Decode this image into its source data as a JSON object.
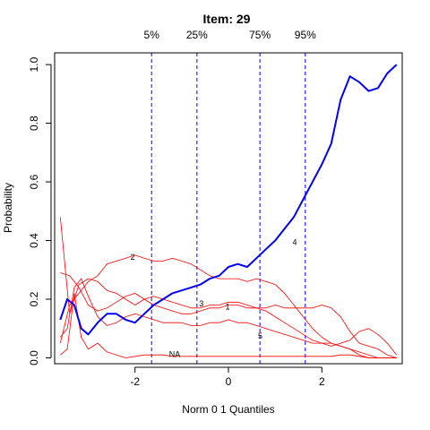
{
  "chart_data": {
    "type": "line",
    "title": "Item:  29",
    "xlabel": "Norm 0 1 Quantiles",
    "ylabel": "Probability",
    "xlim": [
      -3.72,
      3.72
    ],
    "ylim": [
      -0.02,
      1.04
    ],
    "x_ticks": [
      -2,
      0,
      2
    ],
    "x_tick_labels": [
      "-2",
      "0",
      "2"
    ],
    "y_ticks": [
      0.0,
      0.2,
      0.4,
      0.6,
      0.8,
      1.0
    ],
    "y_tick_labels": [
      "0.0",
      "0.2",
      "0.4",
      "0.6",
      "0.8",
      "1.0"
    ],
    "grid": false,
    "quantile_lines": [
      {
        "label": "5%",
        "x": -1.645,
        "color": "#0000ff"
      },
      {
        "label": "25%",
        "x": -0.674,
        "color": "#0000ff"
      },
      {
        "label": "75%",
        "x": 0.674,
        "color": "#0000ff"
      },
      {
        "label": "95%",
        "x": 1.645,
        "color": "#0000ff"
      }
    ],
    "series": [
      {
        "name": "4",
        "color": "#0000ff",
        "highlight": true,
        "label_at": [
          1.42,
          0.385
        ],
        "x": [
          -3.6,
          -3.45,
          -3.3,
          -3.15,
          -3.0,
          -2.8,
          -2.6,
          -2.4,
          -2.2,
          -2.0,
          -1.8,
          -1.6,
          -1.4,
          -1.2,
          -1.0,
          -0.8,
          -0.6,
          -0.4,
          -0.2,
          0.0,
          0.2,
          0.4,
          0.6,
          0.8,
          1.0,
          1.2,
          1.4,
          1.6,
          1.8,
          2.0,
          2.2,
          2.4,
          2.6,
          2.8,
          3.0,
          3.2,
          3.4,
          3.6
        ],
        "y": [
          0.13,
          0.2,
          0.18,
          0.1,
          0.08,
          0.12,
          0.15,
          0.15,
          0.13,
          0.12,
          0.15,
          0.18,
          0.2,
          0.22,
          0.23,
          0.24,
          0.25,
          0.27,
          0.28,
          0.31,
          0.32,
          0.31,
          0.34,
          0.37,
          0.4,
          0.44,
          0.48,
          0.54,
          0.6,
          0.66,
          0.73,
          0.88,
          0.96,
          0.94,
          0.91,
          0.92,
          0.97,
          1.0
        ]
      },
      {
        "name": "2",
        "color": "#ff0000",
        "label_at": [
          -2.05,
          0.335
        ],
        "x": [
          -3.6,
          -3.4,
          -3.2,
          -3.0,
          -2.8,
          -2.6,
          -2.4,
          -2.2,
          -2.0,
          -1.8,
          -1.6,
          -1.4,
          -1.2,
          -1.0,
          -0.8,
          -0.6,
          -0.4,
          -0.2,
          0.0,
          0.2,
          0.4,
          0.6,
          0.8,
          1.0,
          1.2,
          1.4,
          1.6,
          1.8,
          2.0,
          2.2,
          2.4,
          2.6,
          2.8,
          3.0,
          3.2,
          3.4,
          3.6
        ],
        "y": [
          0.05,
          0.18,
          0.22,
          0.26,
          0.28,
          0.32,
          0.33,
          0.34,
          0.35,
          0.34,
          0.33,
          0.33,
          0.34,
          0.33,
          0.32,
          0.3,
          0.28,
          0.27,
          0.27,
          0.27,
          0.26,
          0.27,
          0.26,
          0.25,
          0.22,
          0.18,
          0.14,
          0.1,
          0.07,
          0.05,
          0.04,
          0.03,
          0.02,
          0.01,
          0.0,
          0.0,
          0.0
        ]
      },
      {
        "name": "3",
        "color": "#ff0000",
        "label_at": [
          -0.58,
          0.175
        ],
        "x": [
          -3.6,
          -3.4,
          -3.2,
          -3.0,
          -2.8,
          -2.6,
          -2.4,
          -2.2,
          -2.0,
          -1.8,
          -1.6,
          -1.4,
          -1.2,
          -1.0,
          -0.8,
          -0.6,
          -0.4,
          -0.2,
          0.0,
          0.2,
          0.4,
          0.6,
          0.8,
          1.0,
          1.2,
          1.4,
          1.6,
          1.8,
          2.0,
          2.2,
          2.4,
          2.6,
          2.8,
          3.0,
          3.2,
          3.4,
          3.6
        ],
        "y": [
          0.29,
          0.28,
          0.24,
          0.18,
          0.16,
          0.17,
          0.19,
          0.21,
          0.22,
          0.2,
          0.18,
          0.17,
          0.16,
          0.15,
          0.15,
          0.16,
          0.17,
          0.17,
          0.18,
          0.18,
          0.17,
          0.17,
          0.17,
          0.18,
          0.17,
          0.17,
          0.17,
          0.17,
          0.18,
          0.17,
          0.14,
          0.09,
          0.05,
          0.04,
          0.03,
          0.01,
          0.0
        ]
      },
      {
        "name": "1",
        "color": "#ff0000",
        "label_at": [
          -0.02,
          0.165
        ],
        "x": [
          -3.6,
          -3.4,
          -3.2,
          -3.0,
          -2.8,
          -2.6,
          -2.4,
          -2.2,
          -2.0,
          -1.8,
          -1.6,
          -1.4,
          -1.2,
          -1.0,
          -0.8,
          -0.6,
          -0.4,
          -0.2,
          0.0,
          0.2,
          0.4,
          0.6,
          0.8,
          1.0,
          1.2,
          1.4,
          1.6,
          1.8,
          2.0,
          2.2,
          2.4,
          2.6,
          2.8,
          3.0,
          3.2,
          3.4,
          3.6
        ],
        "y": [
          0.48,
          0.15,
          0.25,
          0.27,
          0.26,
          0.23,
          0.22,
          0.2,
          0.18,
          0.2,
          0.21,
          0.2,
          0.19,
          0.18,
          0.17,
          0.17,
          0.18,
          0.18,
          0.19,
          0.19,
          0.18,
          0.17,
          0.16,
          0.14,
          0.12,
          0.1,
          0.08,
          0.06,
          0.05,
          0.04,
          0.05,
          0.06,
          0.09,
          0.1,
          0.08,
          0.05,
          0.01
        ]
      },
      {
        "name": "5",
        "color": "#ff0000",
        "label_at": [
          0.68,
          0.065
        ],
        "x": [
          -3.6,
          -3.45,
          -3.3,
          -3.15,
          -3.0,
          -2.8,
          -2.6,
          -2.4,
          -2.2,
          -2.0,
          -1.8,
          -1.6,
          -1.4,
          -1.2,
          -1.0,
          -0.8,
          -0.6,
          -0.4,
          -0.2,
          0.0,
          0.2,
          0.4,
          0.6,
          0.8,
          1.0,
          1.2,
          1.4,
          1.6,
          1.8,
          2.0,
          2.2,
          2.4,
          2.6,
          2.8,
          3.0,
          3.2,
          3.4,
          3.6
        ],
        "y": [
          0.07,
          0.1,
          0.24,
          0.27,
          0.21,
          0.14,
          0.11,
          0.12,
          0.14,
          0.15,
          0.14,
          0.13,
          0.12,
          0.12,
          0.12,
          0.11,
          0.11,
          0.12,
          0.12,
          0.13,
          0.12,
          0.12,
          0.11,
          0.1,
          0.09,
          0.08,
          0.07,
          0.06,
          0.05,
          0.05,
          0.05,
          0.04,
          0.03,
          0.01,
          0.0,
          0.0,
          0.0,
          0.0
        ]
      },
      {
        "name": "NA",
        "color": "#ff0000",
        "label_at": [
          -1.15,
          0.003
        ],
        "x": [
          -3.6,
          -3.45,
          -3.3,
          -3.15,
          -3.0,
          -2.8,
          -2.6,
          -2.4,
          -2.2,
          -2.0,
          -1.8,
          -1.6,
          -1.4,
          -1.2,
          -1.0,
          -0.8,
          -0.6,
          -0.4,
          -0.2,
          0.0,
          0.2,
          0.4,
          0.6,
          0.8,
          1.0,
          1.2,
          1.4,
          1.6,
          1.8,
          2.0,
          2.2,
          2.4,
          2.6,
          2.8,
          3.0,
          3.2,
          3.4,
          3.6
        ],
        "y": [
          0.01,
          0.03,
          0.22,
          0.07,
          0.03,
          0.05,
          0.02,
          0.01,
          0.0,
          0.005,
          0.01,
          0.01,
          0.01,
          0.005,
          0.005,
          0.005,
          0.005,
          0.005,
          0.005,
          0.005,
          0.005,
          0.005,
          0.005,
          0.005,
          0.005,
          0.005,
          0.005,
          0.005,
          0.005,
          0.005,
          0.005,
          0.01,
          0.01,
          0.005,
          0.0,
          0.0,
          0.0,
          0.0
        ]
      }
    ]
  }
}
